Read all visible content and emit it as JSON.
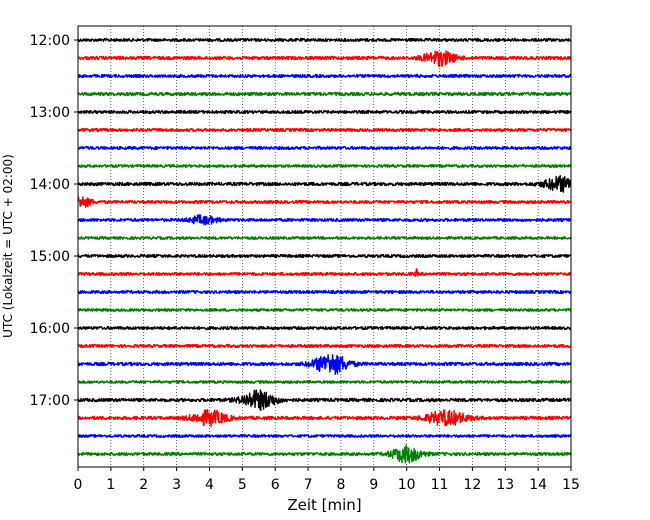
{
  "chart_data": {
    "type": "line",
    "title": "",
    "xlabel": "Zeit  [min]",
    "ylabel": "UTC (Lokalzeit = UTC + 02:00)",
    "xlim": [
      0,
      15
    ],
    "x_ticks": [
      "0",
      "1",
      "2",
      "3",
      "4",
      "5",
      "6",
      "7",
      "8",
      "9",
      "10",
      "11",
      "12",
      "13",
      "14",
      "15"
    ],
    "y_ticks": [
      "12:00",
      "13:00",
      "14:00",
      "15:00",
      "16:00",
      "17:00"
    ],
    "grid": "vertical dotted at each minute",
    "colors": [
      "#000000",
      "#ff0000",
      "#0000ff",
      "#008000"
    ],
    "traces": [
      {
        "start": "12:00",
        "color": "#000000",
        "noise": 0.9,
        "bursts": []
      },
      {
        "start": "12:15",
        "color": "#ff0000",
        "noise": 1.0,
        "bursts": [
          [
            11.0,
            0.45,
            7
          ]
        ]
      },
      {
        "start": "12:30",
        "color": "#0000ff",
        "noise": 0.9,
        "bursts": []
      },
      {
        "start": "12:45",
        "color": "#008000",
        "noise": 1.0,
        "bursts": []
      },
      {
        "start": "13:00",
        "color": "#000000",
        "noise": 0.9,
        "bursts": []
      },
      {
        "start": "13:15",
        "color": "#ff0000",
        "noise": 0.9,
        "bursts": []
      },
      {
        "start": "13:30",
        "color": "#0000ff",
        "noise": 0.9,
        "bursts": []
      },
      {
        "start": "13:45",
        "color": "#008000",
        "noise": 0.8,
        "bursts": []
      },
      {
        "start": "14:00",
        "color": "#000000",
        "noise": 1.0,
        "bursts": [
          [
            14.7,
            0.5,
            7
          ]
        ]
      },
      {
        "start": "14:15",
        "color": "#ff0000",
        "noise": 0.9,
        "bursts": [
          [
            0.1,
            0.3,
            5
          ]
        ]
      },
      {
        "start": "14:30",
        "color": "#0000ff",
        "noise": 0.9,
        "bursts": [
          [
            3.8,
            0.4,
            4
          ]
        ]
      },
      {
        "start": "14:45",
        "color": "#008000",
        "noise": 0.8,
        "bursts": []
      },
      {
        "start": "15:00",
        "color": "#000000",
        "noise": 0.9,
        "bursts": []
      },
      {
        "start": "15:15",
        "color": "#ff0000",
        "noise": 0.9,
        "bursts": [
          [
            10.3,
            0.03,
            4
          ]
        ]
      },
      {
        "start": "15:30",
        "color": "#0000ff",
        "noise": 0.9,
        "bursts": []
      },
      {
        "start": "15:45",
        "color": "#008000",
        "noise": 0.8,
        "bursts": []
      },
      {
        "start": "16:00",
        "color": "#000000",
        "noise": 0.9,
        "bursts": []
      },
      {
        "start": "16:15",
        "color": "#ff0000",
        "noise": 0.9,
        "bursts": []
      },
      {
        "start": "16:30",
        "color": "#0000ff",
        "noise": 1.0,
        "bursts": [
          [
            7.7,
            0.5,
            10
          ]
        ]
      },
      {
        "start": "16:45",
        "color": "#008000",
        "noise": 0.8,
        "bursts": []
      },
      {
        "start": "17:00",
        "color": "#000000",
        "noise": 1.0,
        "bursts": [
          [
            5.5,
            0.5,
            9
          ]
        ]
      },
      {
        "start": "17:15",
        "color": "#ff0000",
        "noise": 1.0,
        "bursts": [
          [
            4.0,
            0.5,
            7
          ],
          [
            11.2,
            0.6,
            7
          ]
        ]
      },
      {
        "start": "17:30",
        "color": "#0000ff",
        "noise": 0.8,
        "bursts": []
      },
      {
        "start": "17:45",
        "color": "#008000",
        "noise": 0.9,
        "bursts": [
          [
            10.0,
            0.45,
            8
          ]
        ]
      }
    ]
  }
}
